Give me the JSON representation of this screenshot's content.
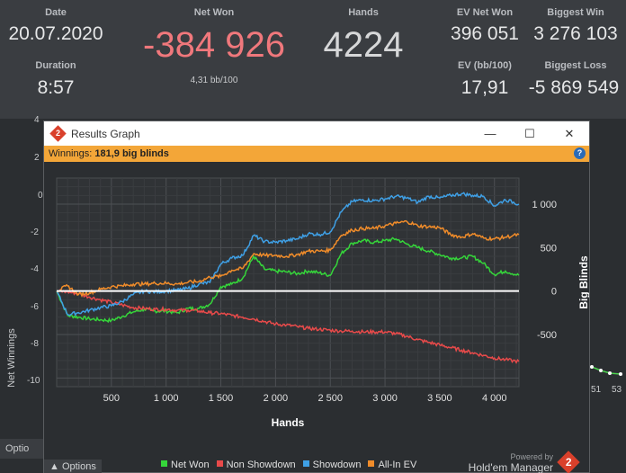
{
  "stats": {
    "date": {
      "label": "Date",
      "value": "20.07.2020"
    },
    "duration": {
      "label": "Duration",
      "value": "8:57"
    },
    "net_won": {
      "label": "Net Won",
      "value": "-384 926",
      "sub": "4,31 bb/100"
    },
    "hands": {
      "label": "Hands",
      "value": "4224"
    },
    "ev_net_won": {
      "label": "EV Net Won",
      "value": "396 051"
    },
    "ev_bb100": {
      "label": "EV (bb/100)",
      "value": "17,91"
    },
    "biggest_win": {
      "label": "Biggest Win",
      "value": "3 276 103"
    },
    "biggest_loss": {
      "label": "Biggest Loss",
      "value": "-5 869 549"
    }
  },
  "background": {
    "y_axis_title": "Net Winnings",
    "y_ticks": [
      "4",
      "2",
      "0",
      "-2",
      "-4",
      "-6",
      "-8",
      "-10"
    ],
    "x_ticks": [
      "51",
      "53"
    ],
    "options_label": "Optio"
  },
  "window": {
    "title": "Results Graph",
    "controls": {
      "minimize": "—",
      "maximize": "☐",
      "close": "✕"
    },
    "info": {
      "label": "Winnings:",
      "value": "181,9 big blinds"
    },
    "help": "?",
    "options_label": "Options",
    "powered_by": "Powered by",
    "brand": "Hold'em Manager",
    "brand_mark": "2"
  },
  "colors": {
    "net_won": "#35d63a",
    "non_showdown": "#e84a4a",
    "showdown": "#3fa0e6",
    "all_in_ev": "#f08c2a",
    "zero_line": "#ffffff"
  },
  "chart_data": {
    "type": "line",
    "xlabel": "Hands",
    "ylabel": "Big Blinds",
    "xlim": [
      0,
      4224
    ],
    "ylim": [
      -1100,
      1300
    ],
    "x_ticks": [
      500,
      1000,
      1500,
      2000,
      2500,
      3000,
      3500,
      4000
    ],
    "x_tick_labels": [
      "500",
      "1 000",
      "1 500",
      "2 000",
      "2 500",
      "3 000",
      "3 500",
      "4 000"
    ],
    "y_ticks": [
      -500,
      0,
      500,
      1000
    ],
    "y_tick_labels": [
      "-500",
      "0",
      "500",
      "1 000"
    ],
    "grid": true,
    "legend": "bottom",
    "x": [
      0,
      100,
      200,
      300,
      400,
      500,
      600,
      700,
      800,
      900,
      1000,
      1100,
      1200,
      1300,
      1400,
      1500,
      1600,
      1700,
      1800,
      1900,
      2000,
      2100,
      2200,
      2300,
      2400,
      2500,
      2600,
      2700,
      2800,
      2900,
      3000,
      3100,
      3200,
      3300,
      3400,
      3500,
      3600,
      3700,
      3800,
      3900,
      4000,
      4100,
      4224
    ],
    "series": [
      {
        "name": "Net Won",
        "color_key": "net_won",
        "values": [
          0,
          -280,
          -300,
          -320,
          -330,
          -340,
          -290,
          -240,
          -210,
          -230,
          -230,
          -250,
          -200,
          -200,
          -150,
          50,
          80,
          150,
          400,
          250,
          230,
          220,
          200,
          230,
          210,
          180,
          430,
          550,
          580,
          560,
          580,
          600,
          540,
          500,
          460,
          420,
          380,
          380,
          400,
          320,
          190,
          230,
          180
        ]
      },
      {
        "name": "Non Showdown",
        "color_key": "non_showdown",
        "values": [
          0,
          -10,
          -30,
          -70,
          -100,
          -130,
          -160,
          -190,
          -200,
          -210,
          -210,
          -220,
          -220,
          -230,
          -250,
          -260,
          -280,
          -300,
          -320,
          -350,
          -380,
          -390,
          -410,
          -430,
          -440,
          -450,
          -460,
          -460,
          -470,
          -470,
          -470,
          -490,
          -520,
          -560,
          -590,
          -620,
          -650,
          -680,
          -710,
          -740,
          -770,
          -790,
          -810
        ]
      },
      {
        "name": "Showdown",
        "color_key": "showdown",
        "values": [
          0,
          -270,
          -250,
          -220,
          -190,
          -170,
          -120,
          -40,
          0,
          -10,
          0,
          10,
          30,
          80,
          100,
          310,
          380,
          410,
          640,
          570,
          560,
          580,
          600,
          660,
          650,
          680,
          910,
          1030,
          1050,
          1040,
          1060,
          1090,
          1070,
          1020,
          1090,
          1070,
          1100,
          1120,
          1100,
          1090,
          980,
          1050,
          1000
        ]
      },
      {
        "name": "All-In EV",
        "color_key": "all_in_ev",
        "values": [
          0,
          60,
          -40,
          -20,
          20,
          50,
          60,
          80,
          80,
          90,
          90,
          80,
          100,
          110,
          160,
          170,
          240,
          260,
          430,
          410,
          410,
          400,
          420,
          460,
          460,
          470,
          640,
          700,
          720,
          720,
          750,
          780,
          800,
          750,
          740,
          730,
          650,
          620,
          660,
          610,
          600,
          620,
          650
        ]
      }
    ]
  }
}
